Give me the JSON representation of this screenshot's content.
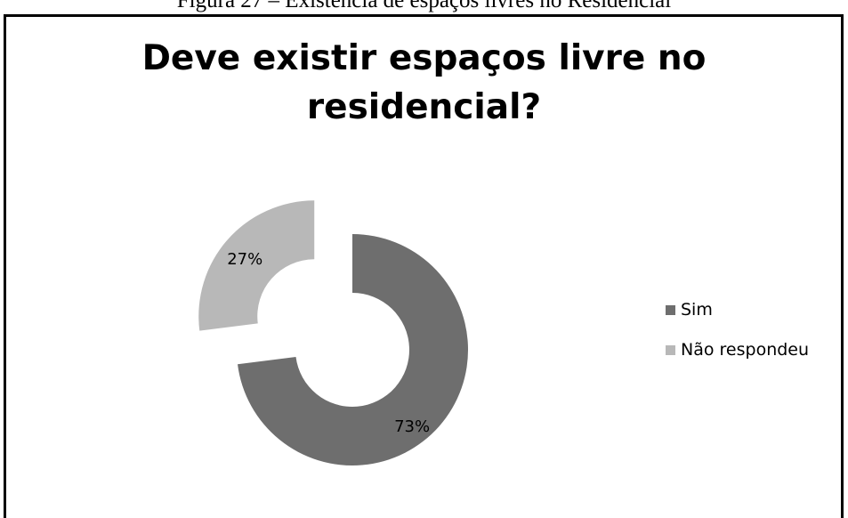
{
  "caption": "Figura 27 – Existência de espaços livres no Residencial",
  "chart_data": {
    "type": "pie",
    "title_line1": "Deve existir espaços livre no",
    "title_line2": "residencial?",
    "donut": true,
    "slices": [
      {
        "name": "Sim",
        "value": 73,
        "label": "73%",
        "color": "#6e6e6e",
        "exploded": false
      },
      {
        "name": "Não respondeu",
        "value": 27,
        "label": "27%",
        "color": "#b8b8b8",
        "exploded": true
      }
    ],
    "legend_position": "right"
  }
}
